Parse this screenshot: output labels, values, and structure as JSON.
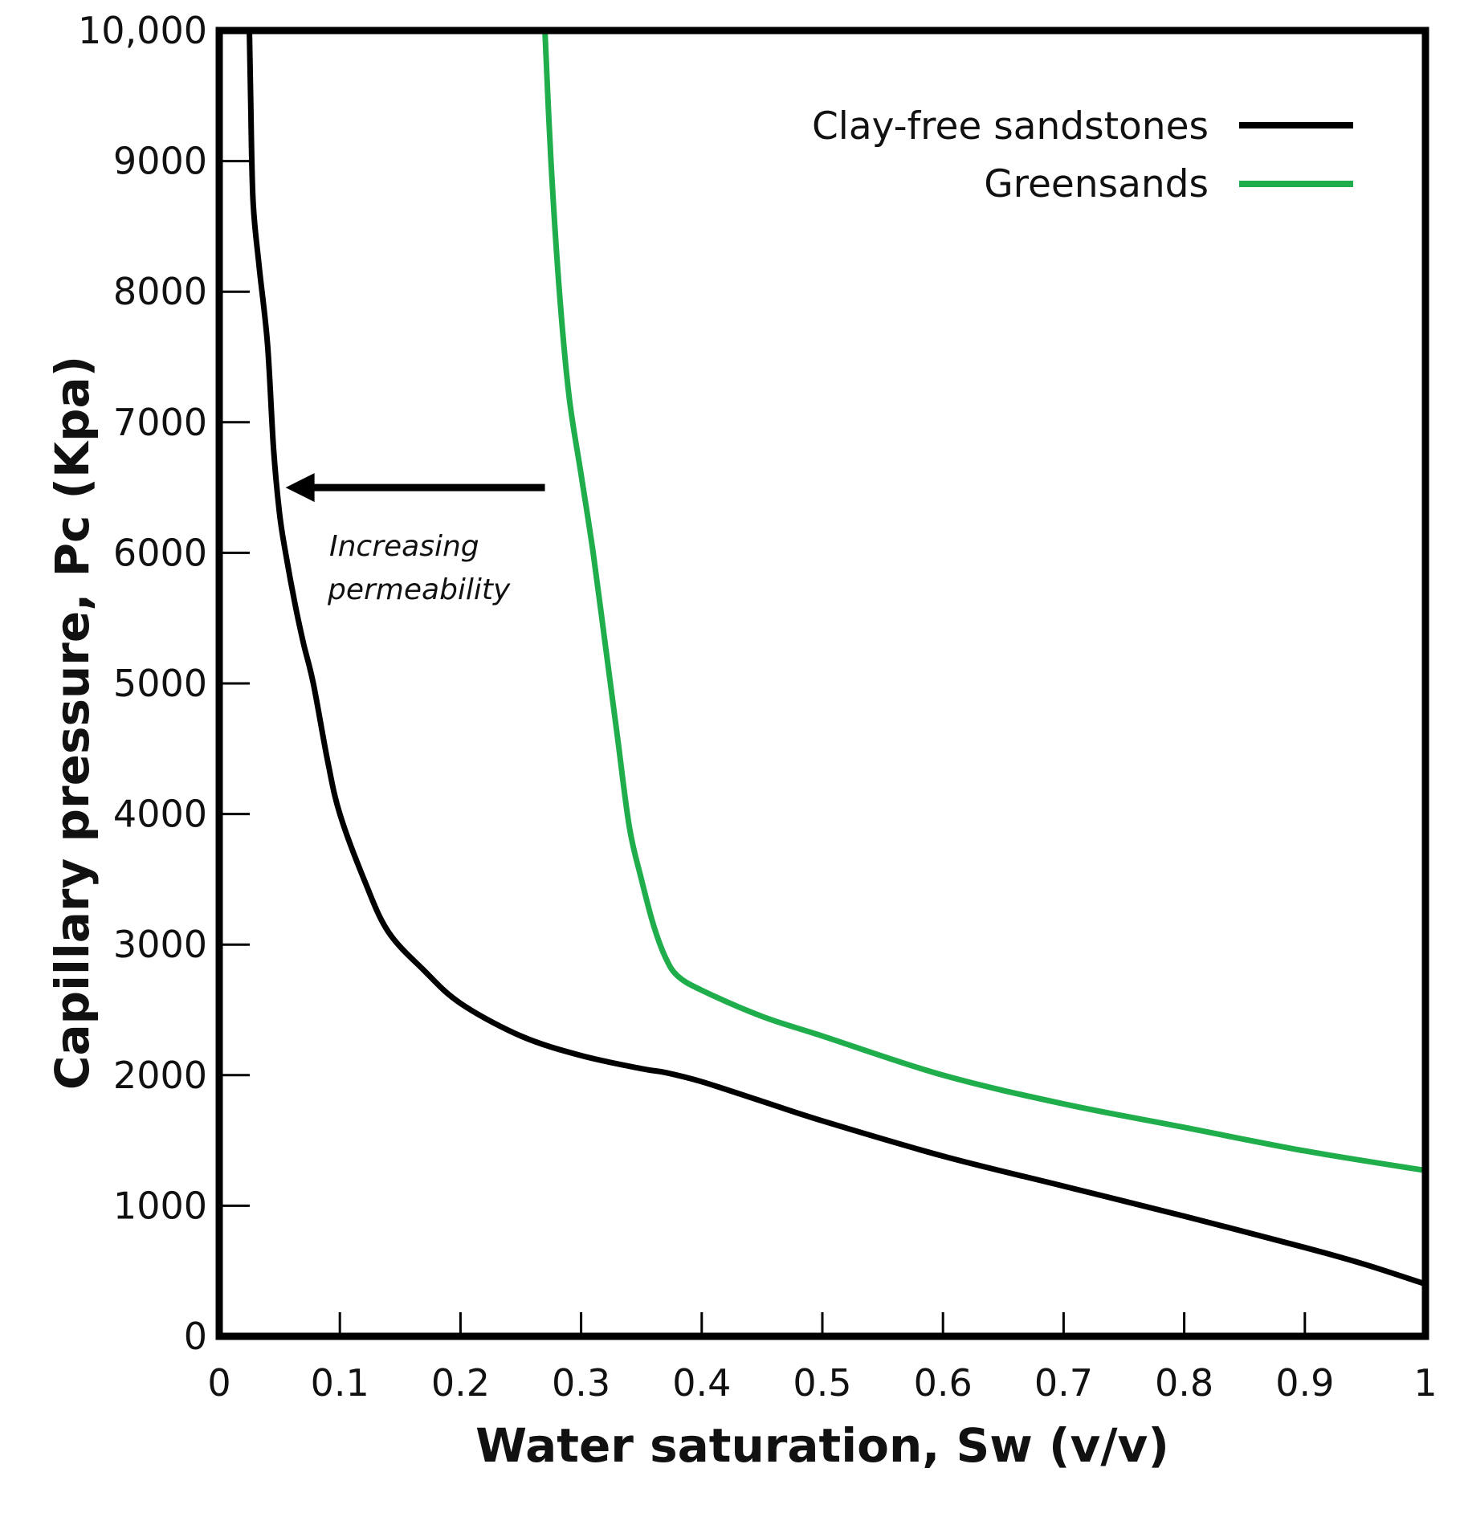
{
  "chart_data": {
    "type": "line",
    "xlabel": "Water saturation, Sw (v/v)",
    "ylabel": "Capillary pressure, Pc (Kpa)",
    "xlim": [
      0,
      1
    ],
    "ylim": [
      0,
      10000
    ],
    "x_ticks": [
      0,
      0.1,
      0.2,
      0.3,
      0.4,
      0.5,
      0.6,
      0.7,
      0.8,
      0.9,
      1
    ],
    "x_tick_labels": [
      "0",
      "0.1",
      "0.2",
      "0.3",
      "0.4",
      "0.5",
      "0.6",
      "0.7",
      "0.8",
      "0.9",
      "1"
    ],
    "y_ticks": [
      0,
      1000,
      2000,
      3000,
      4000,
      5000,
      6000,
      7000,
      8000,
      9000,
      10000
    ],
    "y_tick_labels": [
      "0",
      "1000",
      "2000",
      "3000",
      "4000",
      "5000",
      "6000",
      "7000",
      "8000",
      "9000",
      "10,000"
    ],
    "legend_position": "top-right",
    "series": [
      {
        "name": "Clay-free sandstones",
        "color": "#000000",
        "x": [
          0.025,
          0.026,
          0.028,
          0.033,
          0.04,
          0.045,
          0.05,
          0.055,
          0.063,
          0.07,
          0.078,
          0.09,
          0.1,
          0.12,
          0.14,
          0.17,
          0.2,
          0.25,
          0.3,
          0.35,
          0.37,
          0.4,
          0.45,
          0.5,
          0.6,
          0.7,
          0.8,
          0.9,
          0.95,
          1.0
        ],
        "y": [
          10000,
          9500,
          8700,
          8200,
          7600,
          6800,
          6300,
          6000,
          5600,
          5300,
          5000,
          4400,
          4000,
          3500,
          3100,
          2800,
          2550,
          2300,
          2150,
          2050,
          2020,
          1950,
          1800,
          1650,
          1380,
          1150,
          920,
          680,
          550,
          400
        ]
      },
      {
        "name": "Greensands",
        "color": "#1fae4b",
        "x": [
          0.27,
          0.275,
          0.282,
          0.29,
          0.3,
          0.31,
          0.32,
          0.33,
          0.34,
          0.35,
          0.36,
          0.37,
          0.38,
          0.4,
          0.45,
          0.5,
          0.6,
          0.7,
          0.8,
          0.9,
          1.0
        ],
        "y": [
          10000,
          9000,
          8000,
          7200,
          6600,
          6000,
          5300,
          4600,
          3900,
          3500,
          3150,
          2900,
          2760,
          2650,
          2450,
          2300,
          2000,
          1780,
          1600,
          1420,
          1270
        ]
      }
    ],
    "annotation": {
      "line1": "Increasing",
      "line2": "permeability",
      "arrow_from": [
        0.27,
        6500
      ],
      "arrow_to": [
        0.055,
        6500
      ]
    }
  }
}
